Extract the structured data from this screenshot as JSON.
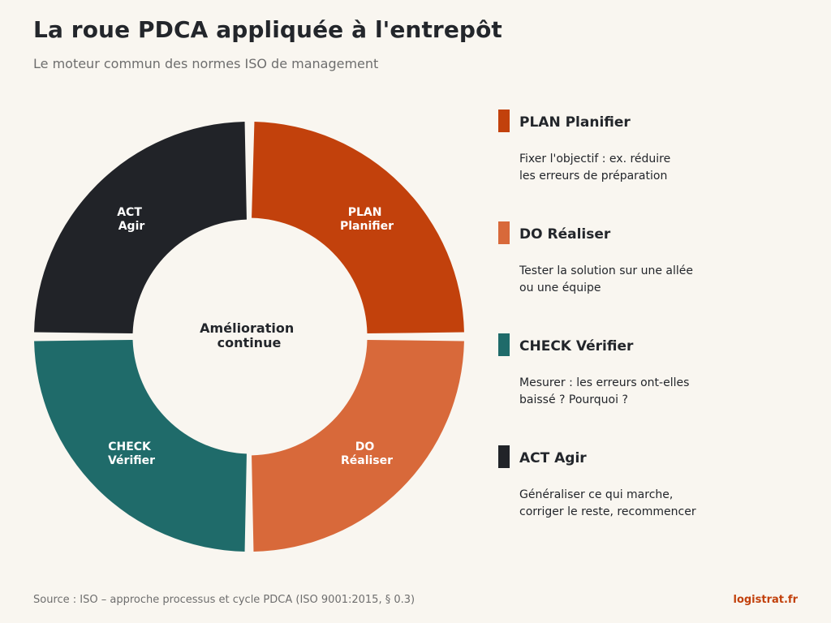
{
  "title": "La roue PDCA appliquée à l'entrepôt",
  "subtitle": "Le moteur commun des normes ISO de management",
  "center": {
    "line1": "Amélioration",
    "line2": "continue"
  },
  "phases": [
    {
      "id": "plan",
      "label_line1": "PLAN",
      "label_line2": "Planifier",
      "heading": "PLAN Planifier",
      "description_lines": [
        "Fixer l'objectif : ex. réduire",
        "les erreurs de préparation"
      ],
      "color": "#c2410c"
    },
    {
      "id": "do",
      "label_line1": "DO",
      "label_line2": "Réaliser",
      "heading": "DO Réaliser",
      "description_lines": [
        "Tester la solution sur une allée",
        "ou une équipe"
      ],
      "color": "#d8693a"
    },
    {
      "id": "check",
      "label_line1": "CHECK",
      "label_line2": "Vérifier",
      "heading": "CHECK Vérifier",
      "description_lines": [
        "Mesurer : les erreurs ont-elles",
        "baissé ? Pourquoi ?"
      ],
      "color": "#1f6b6a"
    },
    {
      "id": "act",
      "label_line1": "ACT",
      "label_line2": "Agir",
      "heading": "ACT Agir",
      "description_lines": [
        "Généraliser ce qui marche,",
        "corriger le reste, recommencer"
      ],
      "color": "#212328"
    }
  ],
  "footer": {
    "source": "Source : ISO – approche processus et cycle PDCA (ISO 9001:2015, § 0.3)",
    "brand": "logistrat.fr",
    "brand_color": "#c2410c"
  }
}
